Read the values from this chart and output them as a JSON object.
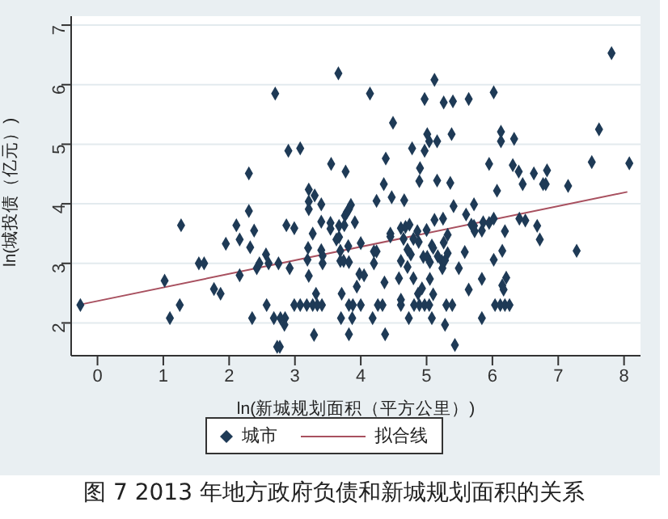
{
  "chart_data": {
    "type": "scatter",
    "title": "图 7 2013 年地方政府负债和新城规划面积的关系",
    "xlabel": "ln(新城规划面积（平方公里）)",
    "ylabel": "ln(城投债（亿元）)",
    "xlim": [
      -0.4,
      8.25
    ],
    "ylim": [
      1.45,
      7.15
    ],
    "xticks": [
      0,
      1,
      2,
      3,
      4,
      5,
      6,
      7,
      8
    ],
    "yticks": [
      2,
      3,
      4,
      5,
      6,
      7
    ],
    "grid": "y",
    "legend": "bottom",
    "series": [
      {
        "name": "城市",
        "marker": "diamond",
        "color": "#1e3a56",
        "x": [
          -0.26,
          1.02,
          1.1,
          1.27,
          1.25,
          1.54,
          1.62,
          1.77,
          1.87,
          1.95,
          2.11,
          2.16,
          2.16,
          2.3,
          2.3,
          2.32,
          2.38,
          2.35,
          2.42,
          2.46,
          2.56,
          2.57,
          2.6,
          2.7,
          2.68,
          2.73,
          2.77,
          2.75,
          2.78,
          2.85,
          2.84,
          2.87,
          2.9,
          2.92,
          2.99,
          2.99,
          3.08,
          3.18,
          3.27,
          3.34,
          3.41,
          3.08,
          3.21,
          3.21,
          3.21,
          3.3,
          3.2,
          3.19,
          3.21,
          3.27,
          3.32,
          3.29,
          3.4,
          3.4,
          3.4,
          3.42,
          3.42,
          3.54,
          3.54,
          3.55,
          3.66,
          3.63,
          3.77,
          3.76,
          3.79,
          3.82,
          3.85,
          3.67,
          3.75,
          3.67,
          3.69,
          3.69,
          3.74,
          3.81,
          3.82,
          3.91,
          4.0,
          3.98,
          4.05,
          3.71,
          3.82,
          3.88,
          4.0,
          3.7,
          3.87,
          3.82,
          3.94,
          4.14,
          4.18,
          4.2,
          4.2,
          4.24,
          4.24,
          4.26,
          4.33,
          4.36,
          4.37,
          4.35,
          4.38,
          4.45,
          4.45,
          4.47,
          4.49,
          4.58,
          4.61,
          4.61,
          4.68,
          4.74,
          4.61,
          4.61,
          4.65,
          4.66,
          4.71,
          4.71,
          4.73,
          4.76,
          4.78,
          4.8,
          4.8,
          4.81,
          4.89,
          4.97,
          5.04,
          4.86,
          4.88,
          4.9,
          4.89,
          4.87,
          4.93,
          4.97,
          4.97,
          4.95,
          5.01,
          5.0,
          5.01,
          5.04,
          5.16,
          5.05,
          5.05,
          5.08,
          5.1,
          5.1,
          5.08,
          5.12,
          5.12,
          5.16,
          5.17,
          5.23,
          5.25,
          5.24,
          5.28,
          5.26,
          5.26,
          5.28,
          5.3,
          5.39,
          5.32,
          5.32,
          5.36,
          5.38,
          5.4,
          5.41,
          5.43,
          5.49,
          5.58,
          5.6,
          5.64,
          5.64,
          5.68,
          5.72,
          5.72,
          5.73,
          5.84,
          5.84,
          5.84,
          5.86,
          5.95,
          5.95,
          6.02,
          6.02,
          6.02,
          6.04,
          6.12,
          6.19,
          6.26,
          6.07,
          6.13,
          6.13,
          6.15,
          6.15,
          6.17,
          6.19,
          6.21,
          6.33,
          6.31,
          6.4,
          6.46,
          6.41,
          6.5,
          6.63,
          6.68,
          6.72,
          6.77,
          6.81,
          6.83,
          7.15,
          7.28,
          7.51,
          7.62,
          7.81,
          8.08
        ],
        "values": [
          2.3,
          2.71,
          2.08,
          3.64,
          2.3,
          3.0,
          3.0,
          2.57,
          2.49,
          3.33,
          3.64,
          3.4,
          2.8,
          4.51,
          3.88,
          3.27,
          3.55,
          2.08,
          2.92,
          3.0,
          3.15,
          2.3,
          3.0,
          5.85,
          2.08,
          1.6,
          1.6,
          3.0,
          2.08,
          2.08,
          1.97,
          3.64,
          4.89,
          2.92,
          3.59,
          2.3,
          2.3,
          2.3,
          2.3,
          2.3,
          2.3,
          4.93,
          4.24,
          4.04,
          3.91,
          4.14,
          3.26,
          3.06,
          2.79,
          3.5,
          2.49,
          1.8,
          3.99,
          3.7,
          3.22,
          3.0,
          3.13,
          3.68,
          3.58,
          4.67,
          6.19,
          3.4,
          4.54,
          3.8,
          3.86,
          3.91,
          3.98,
          3.63,
          3.64,
          3.44,
          3.21,
          3.04,
          3.04,
          3.29,
          3.02,
          3.69,
          3.34,
          2.82,
          2.8,
          2.49,
          2.3,
          2.3,
          2.3,
          2.08,
          2.08,
          1.81,
          2.61,
          5.85,
          2.08,
          3.0,
          3.2,
          3.2,
          4.05,
          2.3,
          2.3,
          2.68,
          1.81,
          4.33,
          4.76,
          3.5,
          3.45,
          4.11,
          5.36,
          2.75,
          3.04,
          3.59,
          3.61,
          3.65,
          2.39,
          2.3,
          3.41,
          4.06,
          3.23,
          2.94,
          2.08,
          3.15,
          4.93,
          3.41,
          2.75,
          2.3,
          2.3,
          2.3,
          2.3,
          3.54,
          3.36,
          4.6,
          4.38,
          2.49,
          2.58,
          5.76,
          4.89,
          3.11,
          3.11,
          3.56,
          5.17,
          5.05,
          5.05,
          3.02,
          2.74,
          3.3,
          3.26,
          2.48,
          2.08,
          6.08,
          3.73,
          4.39,
          3.12,
          3.04,
          3.75,
          2.92,
          3.05,
          5.7,
          3.35,
          1.97,
          2.3,
          2.3,
          3.48,
          3.17,
          4.35,
          5.17,
          5.72,
          3.96,
          1.63,
          2.92,
          3.19,
          3.82,
          5.76,
          2.56,
          3.65,
          3.63,
          3.99,
          3.54,
          2.08,
          2.74,
          3.55,
          3.69,
          4.67,
          3.68,
          5.87,
          3.75,
          3.06,
          2.3,
          2.3,
          2.3,
          2.3,
          4.22,
          5.05,
          5.21,
          3.21,
          2.63,
          2.56,
          3.54,
          2.76,
          5.09,
          4.65,
          4.54,
          4.33,
          3.75,
          3.72,
          4.51,
          3.63,
          3.4,
          4.33,
          4.33,
          4.56,
          4.3,
          3.21,
          4.7,
          5.25,
          6.53,
          4.68
        ]
      },
      {
        "name": "拟合线",
        "type": "line",
        "color": "#a8505f",
        "x": [
          -0.3,
          8.05
        ],
        "values": [
          2.3,
          4.2
        ]
      }
    ]
  }
}
